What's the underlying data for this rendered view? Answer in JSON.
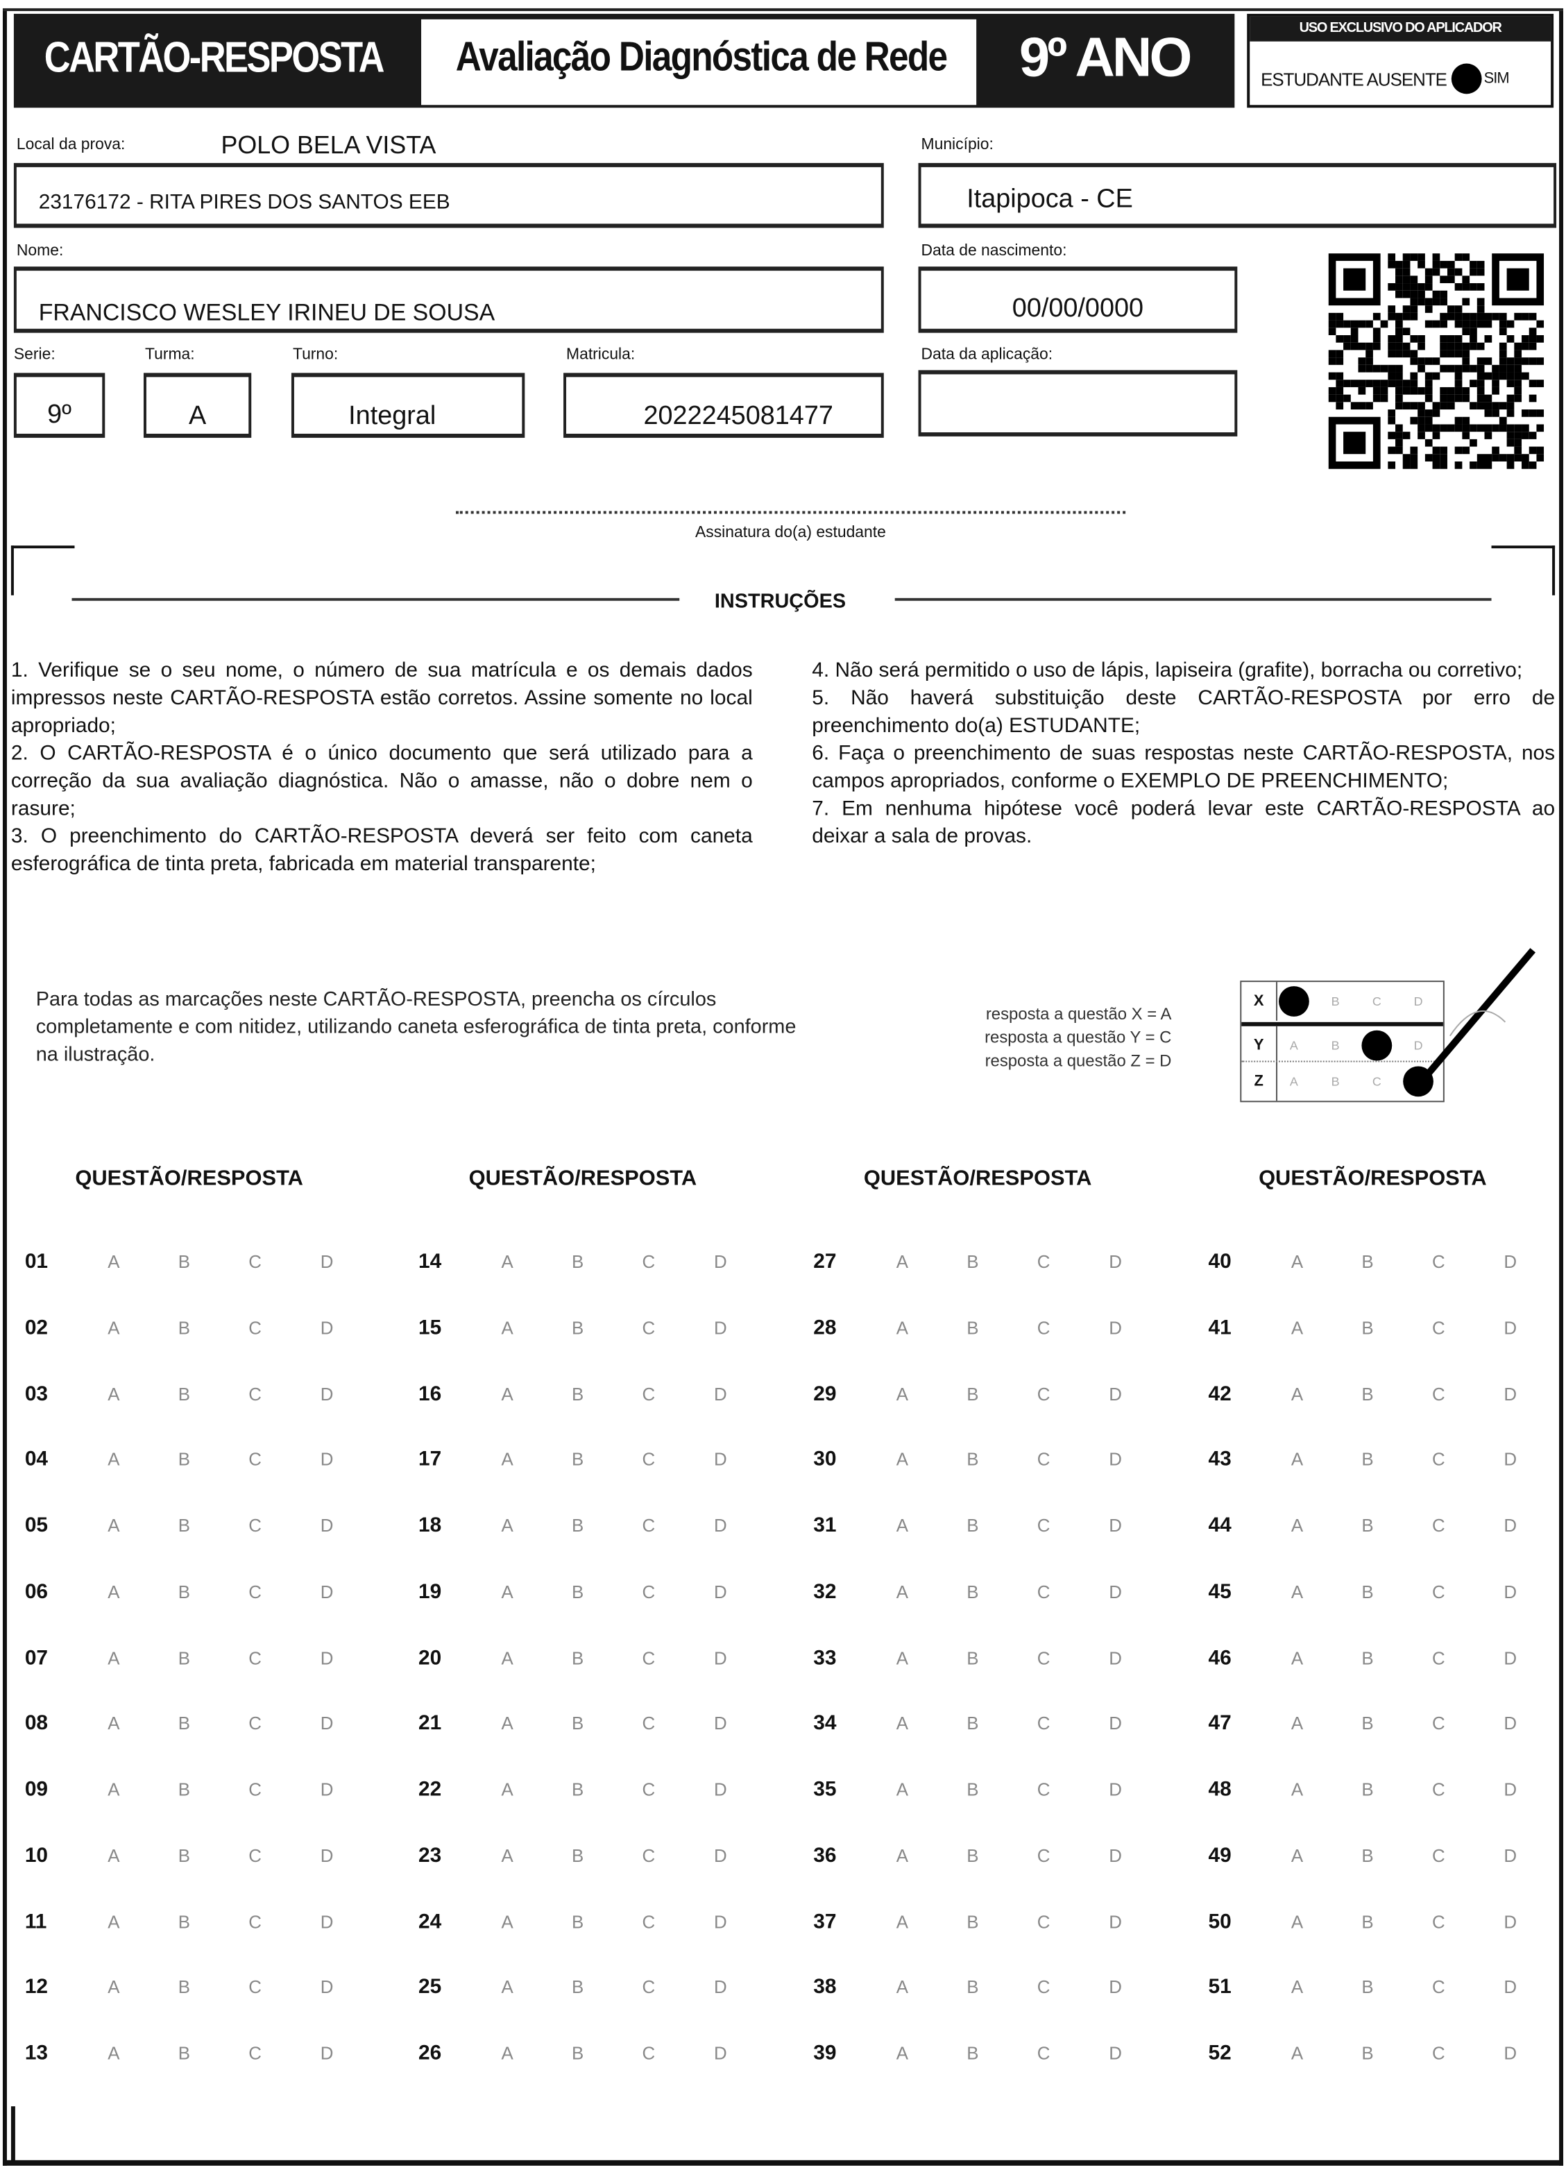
{
  "header": {
    "title": "CARTÃO-RESPOSTA",
    "subtitle": "Avaliação Diagnóstica de Rede",
    "year": "9º ANO",
    "applicator_box": {
      "title": "USO EXCLUSIVO DO APLICADOR",
      "absent_label": "ESTUDANTE AUSENTE",
      "yes_label": "SIM"
    }
  },
  "fields": {
    "local_label": "Local da prova:",
    "local_value": "POLO BELA VISTA",
    "school_value": "23176172 - RITA PIRES DOS SANTOS EEB",
    "municipio_label": "Município:",
    "municipio_value": "Itapipoca - CE",
    "nome_label": "Nome:",
    "nome_value": "FRANCISCO WESLEY IRINEU DE SOUSA",
    "nascimento_label": "Data de nascimento:",
    "nascimento_value": "00/00/0000",
    "serie_label": "Serie:",
    "serie_value": "9º",
    "turma_label": "Turma:",
    "turma_value": "A",
    "turno_label": "Turno:",
    "turno_value": "Integral",
    "matricula_label": "Matricula:",
    "matricula_value": "2022245081477",
    "aplicacao_label": "Data da aplicação:",
    "aplicacao_value": ""
  },
  "signature_label": "Assinatura do(a) estudante",
  "instructions": {
    "title": "INSTRUÇÕES",
    "left": "1. Verifique se o seu nome, o número de sua matrícula e os demais dados impressos neste CARTÃO-RESPOSTA estão corretos. Assine somente no local apropriado; 2. O CARTÃO-RESPOSTA é o único documento que será utilizado para a correção da sua avaliação diagnóstica. Não o amasse, não o dobre nem o rasure; 3. O preenchimento do CARTÃO-RESPOSTA deverá ser feito com caneta esferográfica de tinta preta, fabricada em material transparente;",
    "items_left": [
      "1. Verifique se o seu nome, o número de sua matrícula e os demais dados impressos neste CARTÃO-RESPOSTA estão corretos. Assine somente no local apropriado;",
      "2. O CARTÃO-RESPOSTA é o único documento que será utilizado para a correção da sua avaliação diagnóstica. Não o amasse, não o dobre nem o rasure;",
      "3. O preenchimento do CARTÃO-RESPOSTA deverá ser feito com caneta esferográfica de tinta preta, fabricada em material transparente;"
    ],
    "items_right": [
      "4. Não será permitido o uso de lápis, lapiseira (grafite), borracha ou corretivo;",
      "5. Não haverá substituição deste CARTÃO-RESPOSTA por erro de preenchimento do(a) ESTUDANTE;",
      "6. Faça o preenchimento de suas respostas neste CARTÃO-RESPOSTA, nos campos apropriados, conforme o EXEMPLO DE PREENCHIMENTO;",
      "7. Em nenhuma hipótese você poderá levar este CARTÃO-RESPOSTA ao deixar a sala de provas."
    ]
  },
  "example": {
    "text": "Para todas as marcações neste CARTÃO-RESPOSTA, preencha os círculos completamente e com nitidez, utilizando caneta esferográfica de tinta preta, conforme na ilustração.",
    "legend": [
      "resposta a questão X = A",
      "resposta a questão Y = C",
      "resposta a questão Z = D"
    ],
    "rows": [
      {
        "label": "X",
        "filled": "A"
      },
      {
        "label": "Y",
        "filled": "C"
      },
      {
        "label": "Z",
        "filled": "D"
      }
    ]
  },
  "answers": {
    "column_header": "QUESTÃO/RESPOSTA",
    "options": [
      "A",
      "B",
      "C",
      "D"
    ],
    "columns": [
      [
        "01",
        "02",
        "03",
        "04",
        "05",
        "06",
        "07",
        "08",
        "09",
        "10",
        "11",
        "12",
        "13"
      ],
      [
        "14",
        "15",
        "16",
        "17",
        "18",
        "19",
        "20",
        "21",
        "22",
        "23",
        "24",
        "25",
        "26"
      ],
      [
        "27",
        "28",
        "29",
        "30",
        "31",
        "32",
        "33",
        "34",
        "35",
        "36",
        "37",
        "38",
        "39"
      ],
      [
        "40",
        "41",
        "42",
        "43",
        "44",
        "45",
        "46",
        "47",
        "48",
        "49",
        "50",
        "51",
        "52"
      ]
    ]
  }
}
